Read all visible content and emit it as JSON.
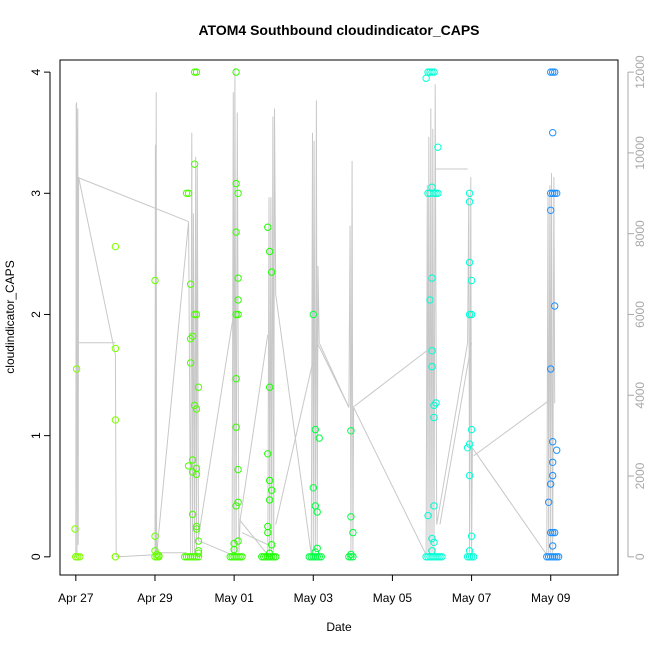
{
  "chart_data": {
    "type": "scatter",
    "title": "ATOM4 Southbound cloudindicator_CAPS",
    "xlabel": "Date",
    "ylabel": "cloudindicator_CAPS",
    "x_ticks": [
      "Apr 27",
      "Apr 29",
      "May 01",
      "May 03",
      "May 05",
      "May 07",
      "May 09"
    ],
    "x_range_days": [
      -0.4,
      13.7
    ],
    "y_left_range": [
      -0.15,
      4.1
    ],
    "y_left_ticks": [
      "0",
      "1",
      "2",
      "3",
      "4"
    ],
    "y_right_range": [
      -450,
      12300
    ],
    "y_right_ticks": [
      "0",
      "2000",
      "4000",
      "6000",
      "8000",
      "10000",
      "12000"
    ],
    "grid": false,
    "line_color": "#c8c8c8",
    "series": [
      {
        "color": "#7fff00",
        "points": [
          [
            0.0,
            0
          ],
          [
            0.0,
            0
          ],
          [
            0.05,
            0
          ],
          [
            0.1,
            0
          ],
          [
            -0.02,
            0.23
          ],
          [
            0.02,
            1.55
          ],
          [
            1.0,
            0
          ],
          [
            1.0,
            0
          ],
          [
            1.0,
            1.13
          ],
          [
            1.0,
            1.72
          ],
          [
            1.0,
            2.56
          ]
        ]
      },
      {
        "color": "#66ff00",
        "points": [
          [
            2.0,
            0.05
          ],
          [
            2.0,
            0
          ],
          [
            2.05,
            0
          ],
          [
            2.1,
            0
          ],
          [
            2.0,
            0.17
          ],
          [
            2.0,
            2.28
          ],
          [
            2.05,
            0.02
          ],
          [
            2.1,
            0.01
          ]
        ]
      },
      {
        "color": "#4cff00",
        "points": [
          [
            2.75,
            0
          ],
          [
            2.8,
            0
          ],
          [
            2.85,
            0
          ],
          [
            2.9,
            0
          ],
          [
            2.95,
            0
          ],
          [
            3.0,
            0
          ],
          [
            3.05,
            0
          ],
          [
            3.1,
            0
          ],
          [
            2.8,
            3.0
          ],
          [
            2.85,
            3.0
          ],
          [
            2.9,
            2.25
          ],
          [
            2.9,
            1.8
          ],
          [
            2.9,
            1.6
          ],
          [
            2.95,
            1.82
          ],
          [
            2.95,
            0.8
          ],
          [
            2.95,
            0.7
          ],
          [
            2.95,
            0.35
          ],
          [
            3.0,
            2.0
          ],
          [
            3.05,
            2.0
          ],
          [
            3.0,
            1.25
          ],
          [
            3.05,
            1.22
          ],
          [
            3.05,
            0.73
          ],
          [
            3.05,
            0.68
          ],
          [
            3.05,
            0.25
          ],
          [
            3.1,
            0.13
          ],
          [
            3.1,
            0.05
          ],
          [
            3.05,
            0.23
          ],
          [
            3.1,
            1.4
          ],
          [
            3.0,
            4.0
          ],
          [
            3.05,
            4.0
          ],
          [
            3.0,
            3.24
          ],
          [
            2.85,
            0.75
          ],
          [
            3.1,
            0.03
          ]
        ]
      },
      {
        "color": "#33ff00",
        "points": [
          [
            3.9,
            0
          ],
          [
            3.95,
            0
          ],
          [
            4.0,
            0
          ],
          [
            4.05,
            0
          ],
          [
            4.1,
            0
          ],
          [
            4.15,
            0
          ],
          [
            4.2,
            0
          ],
          [
            4.05,
            4.0
          ],
          [
            4.05,
            3.08
          ],
          [
            4.1,
            3.0
          ],
          [
            4.05,
            2.68
          ],
          [
            4.1,
            2.3
          ],
          [
            4.1,
            2.12
          ],
          [
            4.05,
            2.0
          ],
          [
            4.1,
            2.0
          ],
          [
            4.05,
            1.47
          ],
          [
            4.05,
            1.07
          ],
          [
            4.1,
            0.72
          ],
          [
            4.1,
            0.45
          ],
          [
            4.05,
            0.42
          ],
          [
            4.1,
            0.13
          ],
          [
            4.0,
            0.11
          ],
          [
            4.0,
            0.06
          ]
        ]
      },
      {
        "color": "#1aff00",
        "points": [
          [
            4.7,
            0
          ],
          [
            4.75,
            0
          ],
          [
            4.8,
            0
          ],
          [
            4.85,
            0
          ],
          [
            4.9,
            0
          ],
          [
            4.95,
            0
          ],
          [
            5.0,
            0
          ],
          [
            5.05,
            0
          ],
          [
            4.85,
            2.72
          ],
          [
            4.9,
            2.52
          ],
          [
            4.95,
            2.35
          ],
          [
            4.9,
            1.4
          ],
          [
            4.85,
            0.85
          ],
          [
            4.9,
            0.63
          ],
          [
            4.95,
            0.55
          ],
          [
            4.9,
            0.47
          ],
          [
            4.85,
            0.25
          ],
          [
            4.85,
            0.2
          ],
          [
            4.95,
            0.1
          ],
          [
            4.9,
            0.03
          ]
        ]
      },
      {
        "color": "#00ff40",
        "points": [
          [
            5.9,
            0
          ],
          [
            5.95,
            0
          ],
          [
            6.0,
            0
          ],
          [
            6.05,
            0
          ],
          [
            6.1,
            0
          ],
          [
            6.15,
            0
          ],
          [
            6.2,
            0
          ],
          [
            6.0,
            2.0
          ],
          [
            6.05,
            1.05
          ],
          [
            6.15,
            0.98
          ],
          [
            6.0,
            0.57
          ],
          [
            6.05,
            0.42
          ],
          [
            6.1,
            0.37
          ],
          [
            6.1,
            0.07
          ],
          [
            6.05,
            0.04
          ],
          [
            6.9,
            0
          ],
          [
            6.95,
            0
          ],
          [
            7.0,
            0
          ],
          [
            6.95,
            1.04
          ],
          [
            6.95,
            0.33
          ],
          [
            7.0,
            0.2
          ],
          [
            6.95,
            0.02
          ]
        ]
      },
      {
        "color": "#00ffd5",
        "points": [
          [
            8.85,
            0
          ],
          [
            8.9,
            0
          ],
          [
            8.95,
            0
          ],
          [
            9.0,
            0
          ],
          [
            9.05,
            0
          ],
          [
            9.1,
            0
          ],
          [
            9.15,
            0
          ],
          [
            9.2,
            0
          ],
          [
            9.25,
            0
          ],
          [
            8.9,
            4.0
          ],
          [
            8.95,
            4.0
          ],
          [
            9.0,
            4.0
          ],
          [
            9.05,
            4.0
          ],
          [
            8.85,
            3.95
          ],
          [
            8.9,
            3.0
          ],
          [
            8.95,
            3.0
          ],
          [
            9.0,
            3.05
          ],
          [
            9.05,
            3.0
          ],
          [
            9.1,
            3.0
          ],
          [
            9.15,
            3.0
          ],
          [
            9.0,
            2.3
          ],
          [
            8.95,
            2.12
          ],
          [
            9.0,
            1.7
          ],
          [
            9.0,
            1.57
          ],
          [
            9.05,
            1.25
          ],
          [
            9.1,
            1.27
          ],
          [
            9.05,
            1.15
          ],
          [
            9.15,
            3.38
          ],
          [
            9.05,
            0.42
          ],
          [
            8.9,
            0.34
          ],
          [
            9.0,
            0.15
          ],
          [
            9.05,
            0.12
          ],
          [
            9.0,
            0.05
          ],
          [
            9.9,
            0
          ],
          [
            9.95,
            0
          ],
          [
            10.0,
            0
          ],
          [
            10.05,
            0
          ],
          [
            9.95,
            3.0
          ],
          [
            9.95,
            2.93
          ],
          [
            9.95,
            2.43
          ],
          [
            10.0,
            2.28
          ],
          [
            9.95,
            2.0
          ],
          [
            10.0,
            2.0
          ],
          [
            10.0,
            1.05
          ],
          [
            9.95,
            0.93
          ],
          [
            9.9,
            0.9
          ],
          [
            9.95,
            0.67
          ],
          [
            10.0,
            0.17
          ],
          [
            9.95,
            0.05
          ]
        ]
      },
      {
        "color": "#1e90ff",
        "points": [
          [
            11.9,
            0
          ],
          [
            11.95,
            0
          ],
          [
            12.0,
            0
          ],
          [
            12.05,
            0
          ],
          [
            12.1,
            0
          ],
          [
            12.15,
            0
          ],
          [
            12.2,
            0
          ],
          [
            12.0,
            4.0
          ],
          [
            12.05,
            4.0
          ],
          [
            12.1,
            4.0
          ],
          [
            12.0,
            3.0
          ],
          [
            12.05,
            3.0
          ],
          [
            12.1,
            3.0
          ],
          [
            12.15,
            3.0
          ],
          [
            12.05,
            3.5
          ],
          [
            12.0,
            2.86
          ],
          [
            12.1,
            2.07
          ],
          [
            12.0,
            1.55
          ],
          [
            12.05,
            0.95
          ],
          [
            12.15,
            0.88
          ],
          [
            12.05,
            0.78
          ],
          [
            12.05,
            0.67
          ],
          [
            12.0,
            0.6
          ],
          [
            11.95,
            0.45
          ],
          [
            12.0,
            0.2
          ],
          [
            12.05,
            0.2
          ],
          [
            12.1,
            0.2
          ],
          [
            12.05,
            0.09
          ]
        ]
      }
    ],
    "raw_line_right_axis": [
      [
        0,
        0
      ],
      [
        0.01,
        11200
      ],
      [
        0.02,
        11250
      ],
      [
        0.03,
        0
      ],
      [
        0.04,
        9500
      ],
      [
        0.05,
        11100
      ],
      [
        0.06,
        300
      ],
      [
        0.07,
        9400
      ],
      [
        1.0,
        5000
      ],
      [
        1.02,
        0
      ],
      [
        2.0,
        50
      ],
      [
        2.01,
        10200
      ],
      [
        2.02,
        0
      ],
      [
        2.03,
        11500
      ],
      [
        2.04,
        50
      ],
      [
        2.85,
        8300
      ],
      [
        2.9,
        50
      ],
      [
        2.93,
        10500
      ],
      [
        2.95,
        50
      ],
      [
        2.97,
        8500
      ],
      [
        3.0,
        50
      ],
      [
        3.03,
        9900
      ],
      [
        3.05,
        200
      ],
      [
        3.07,
        9700
      ],
      [
        3.1,
        400
      ],
      [
        3.95,
        50
      ],
      [
        3.98,
        11500
      ],
      [
        4.0,
        100
      ],
      [
        4.02,
        12100
      ],
      [
        4.05,
        50
      ],
      [
        4.08,
        11000
      ],
      [
        4.12,
        100
      ],
      [
        4.15,
        900
      ],
      [
        4.85,
        50
      ],
      [
        4.88,
        8900
      ],
      [
        4.9,
        100
      ],
      [
        4.93,
        8900
      ],
      [
        4.95,
        100
      ],
      [
        4.98,
        10900
      ],
      [
        5.0,
        150
      ],
      [
        5.02,
        11100
      ],
      [
        5.05,
        6500
      ],
      [
        5.95,
        50
      ],
      [
        5.98,
        10500
      ],
      [
        6.0,
        100
      ],
      [
        6.02,
        10300
      ],
      [
        6.05,
        100
      ],
      [
        6.08,
        11300
      ],
      [
        6.1,
        200
      ],
      [
        6.12,
        7200
      ],
      [
        6.15,
        5300
      ],
      [
        6.9,
        3700
      ],
      [
        6.93,
        8200
      ],
      [
        6.95,
        100
      ],
      [
        6.98,
        9800
      ],
      [
        7.0,
        100
      ],
      [
        7.02,
        3700
      ],
      [
        8.85,
        50
      ],
      [
        8.88,
        9200
      ],
      [
        8.9,
        100
      ],
      [
        8.92,
        10400
      ],
      [
        8.95,
        100
      ],
      [
        8.97,
        11100
      ],
      [
        9.0,
        100
      ],
      [
        9.02,
        10600
      ],
      [
        9.05,
        100
      ],
      [
        9.08,
        11700
      ],
      [
        9.12,
        800
      ],
      [
        9.9,
        5300
      ],
      [
        9.93,
        9000
      ],
      [
        9.95,
        100
      ],
      [
        9.98,
        9400
      ],
      [
        10.0,
        100
      ],
      [
        10.02,
        2700
      ],
      [
        11.9,
        50
      ],
      [
        11.93,
        9000
      ],
      [
        11.95,
        100
      ],
      [
        11.98,
        9200
      ],
      [
        12.0,
        100
      ],
      [
        12.02,
        9500
      ],
      [
        12.05,
        100
      ],
      [
        12.08,
        9400
      ],
      [
        12.1,
        3800
      ]
    ],
    "connector_lines_right_axis": [
      [
        [
          0.0,
          5300
        ],
        [
          1.0,
          5300
        ]
      ],
      [
        [
          0.03,
          9400
        ],
        [
          2.85,
          8300
        ]
      ],
      [
        [
          2.05,
          100
        ],
        [
          2.8,
          100
        ]
      ],
      [
        [
          3.1,
          500
        ],
        [
          4.05,
          6400
        ]
      ],
      [
        [
          4.15,
          900
        ],
        [
          4.85,
          5500
        ]
      ],
      [
        [
          4.2,
          600
        ],
        [
          4.85,
          300
        ]
      ],
      [
        [
          5.05,
          800
        ],
        [
          6.1,
          5300
        ]
      ],
      [
        [
          6.1,
          5300
        ],
        [
          6.9,
          3700
        ]
      ],
      [
        [
          7.0,
          3700
        ],
        [
          9.0,
          5200
        ]
      ],
      [
        [
          9.1,
          9600
        ],
        [
          9.9,
          9600
        ]
      ],
      [
        [
          9.2,
          800
        ],
        [
          10.0,
          5300
        ]
      ],
      [
        [
          10.05,
          2500
        ],
        [
          12.0,
          3900
        ]
      ]
    ]
  }
}
